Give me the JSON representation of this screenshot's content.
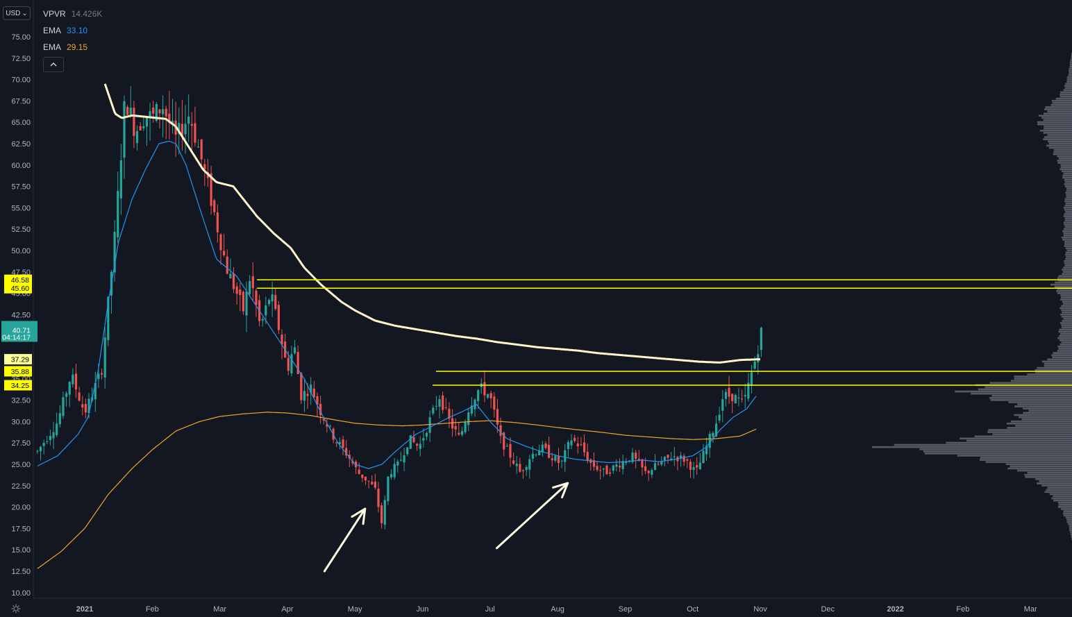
{
  "currency_button": "USD",
  "currency_caret": "⌄",
  "collapse_icon": "chevron-up-icon",
  "settings_icon": "gear-icon",
  "colors": {
    "background": "#131722",
    "candle_up": "#26a69a",
    "candle_down": "#ef5350",
    "ema_short": "#2962ff",
    "ema_long": "#f5a623",
    "ema_200": "#fff5c8",
    "levels": "#ffff00",
    "volume_profile": "#5d606b"
  },
  "legend": [
    {
      "name": "VPVR",
      "value": "14.426K",
      "color": "#787b86"
    },
    {
      "name": "EMA",
      "value": "33.10",
      "color": "#2196f3"
    },
    {
      "name": "EMA",
      "value": "29.15",
      "color": "#f5a623"
    }
  ],
  "price_tags": [
    {
      "label": "46.58",
      "value": 46.58,
      "color": "#ffff00"
    },
    {
      "label": "45.60",
      "value": 45.6,
      "color": "#ffff00"
    },
    {
      "label": "37.29",
      "value": 37.29,
      "color": "#ffff99"
    },
    {
      "label": "35.88",
      "value": 35.88,
      "color": "#ffff00"
    },
    {
      "label": "34.25",
      "value": 34.25,
      "color": "#ffff00"
    }
  ],
  "last_price": {
    "label": "40.71",
    "countdown": "04:14:17",
    "value": 40.71,
    "color": "#26a69a"
  },
  "chart_data": {
    "type": "candlestick",
    "ylim": [
      10,
      77
    ],
    "y_ticks": [
      "75.00",
      "72.50",
      "70.00",
      "67.50",
      "65.00",
      "62.50",
      "60.00",
      "57.50",
      "55.00",
      "52.50",
      "50.00",
      "47.50",
      "45.00",
      "42.50",
      "40.00",
      "37.50",
      "35.00",
      "32.50",
      "30.00",
      "27.50",
      "25.00",
      "22.50",
      "20.00",
      "17.50",
      "15.00",
      "12.50",
      "10.00"
    ],
    "x_ticks": [
      {
        "label": "2021",
        "month": 0,
        "bold": true
      },
      {
        "label": "Feb",
        "month": 1
      },
      {
        "label": "Mar",
        "month": 2
      },
      {
        "label": "Apr",
        "month": 3
      },
      {
        "label": "May",
        "month": 4
      },
      {
        "label": "Jun",
        "month": 5
      },
      {
        "label": "Jul",
        "month": 6
      },
      {
        "label": "Aug",
        "month": 7
      },
      {
        "label": "Sep",
        "month": 8
      },
      {
        "label": "Oct",
        "month": 9
      },
      {
        "label": "Nov",
        "month": 10
      },
      {
        "label": "Dec",
        "month": 11
      },
      {
        "label": "2022",
        "month": 12,
        "bold": true
      },
      {
        "label": "Feb",
        "month": 13
      },
      {
        "label": "Mar",
        "month": 14
      }
    ],
    "close_path": [
      [
        -0.7,
        26.5
      ],
      [
        -0.4,
        30
      ],
      [
        -0.2,
        35.5
      ],
      [
        0.0,
        31
      ],
      [
        0.25,
        36
      ],
      [
        0.35,
        44
      ],
      [
        0.45,
        52
      ],
      [
        0.6,
        68
      ],
      [
        0.75,
        64
      ],
      [
        0.9,
        66
      ],
      [
        1.0,
        65.5
      ],
      [
        1.15,
        67
      ],
      [
        1.35,
        63
      ],
      [
        1.55,
        66
      ],
      [
        1.75,
        60
      ],
      [
        1.9,
        55
      ],
      [
        2.1,
        48
      ],
      [
        2.35,
        43
      ],
      [
        2.45,
        47
      ],
      [
        2.6,
        41
      ],
      [
        2.75,
        45
      ],
      [
        2.9,
        40
      ],
      [
        3.0,
        36
      ],
      [
        3.1,
        39
      ],
      [
        3.2,
        33
      ],
      [
        3.35,
        34
      ],
      [
        3.5,
        31
      ],
      [
        3.7,
        28
      ],
      [
        3.9,
        26
      ],
      [
        4.05,
        24
      ],
      [
        4.2,
        23
      ],
      [
        4.3,
        22
      ],
      [
        4.4,
        18
      ],
      [
        4.5,
        24
      ],
      [
        4.65,
        25
      ],
      [
        4.8,
        28
      ],
      [
        4.95,
        27
      ],
      [
        5.1,
        30
      ],
      [
        5.25,
        33
      ],
      [
        5.4,
        30
      ],
      [
        5.55,
        28
      ],
      [
        5.7,
        32
      ],
      [
        5.85,
        34
      ],
      [
        6.0,
        33
      ],
      [
        6.15,
        28
      ],
      [
        6.3,
        26
      ],
      [
        6.45,
        24
      ],
      [
        6.6,
        26
      ],
      [
        6.75,
        27
      ],
      [
        6.9,
        26
      ],
      [
        7.05,
        25
      ],
      [
        7.2,
        28
      ],
      [
        7.35,
        27
      ],
      [
        7.5,
        25
      ],
      [
        7.7,
        24
      ],
      [
        7.9,
        25
      ],
      [
        8.1,
        26
      ],
      [
        8.3,
        24
      ],
      [
        8.5,
        25
      ],
      [
        8.7,
        26
      ],
      [
        8.9,
        25.5
      ],
      [
        9.05,
        24
      ],
      [
        9.2,
        27
      ],
      [
        9.35,
        30
      ],
      [
        9.45,
        33
      ],
      [
        9.6,
        33
      ],
      [
        9.75,
        32
      ],
      [
        9.85,
        35
      ],
      [
        9.95,
        38
      ],
      [
        10.02,
        40.7
      ]
    ],
    "ema_short_path": [
      [
        -0.7,
        24.8
      ],
      [
        -0.4,
        26
      ],
      [
        -0.1,
        28.5
      ],
      [
        0.05,
        30.5
      ],
      [
        0.2,
        36
      ],
      [
        0.35,
        44
      ],
      [
        0.5,
        51
      ],
      [
        0.7,
        56
      ],
      [
        0.9,
        59.5
      ],
      [
        1.1,
        62.5
      ],
      [
        1.25,
        62.8
      ],
      [
        1.35,
        62.5
      ],
      [
        1.5,
        60
      ],
      [
        1.7,
        55
      ],
      [
        1.95,
        49
      ],
      [
        2.25,
        47
      ],
      [
        2.5,
        44
      ],
      [
        2.75,
        41
      ],
      [
        3.0,
        38
      ],
      [
        3.25,
        35
      ],
      [
        3.5,
        31
      ],
      [
        3.75,
        27.5
      ],
      [
        4.0,
        25
      ],
      [
        4.2,
        24.5
      ],
      [
        4.4,
        25
      ],
      [
        4.6,
        26.5
      ],
      [
        4.9,
        28.5
      ],
      [
        5.15,
        29.5
      ],
      [
        5.4,
        30.5
      ],
      [
        5.6,
        31.2
      ],
      [
        5.8,
        32
      ],
      [
        6.0,
        30
      ],
      [
        6.25,
        28
      ],
      [
        6.5,
        27.2
      ],
      [
        6.75,
        26.5
      ],
      [
        7.0,
        26
      ],
      [
        7.25,
        25.6
      ],
      [
        7.5,
        25.4
      ],
      [
        7.75,
        25.2
      ],
      [
        8.0,
        25.3
      ],
      [
        8.25,
        25.5
      ],
      [
        8.5,
        25.3
      ],
      [
        8.75,
        25.6
      ],
      [
        9.0,
        26
      ],
      [
        9.2,
        27
      ],
      [
        9.4,
        29
      ],
      [
        9.6,
        30.5
      ],
      [
        9.8,
        31.5
      ],
      [
        9.95,
        33.1
      ]
    ],
    "ema_long_path": [
      [
        -0.7,
        12.8
      ],
      [
        -0.35,
        14.8
      ],
      [
        0.0,
        17.5
      ],
      [
        0.35,
        21.5
      ],
      [
        0.7,
        24.5
      ],
      [
        1.0,
        26.7
      ],
      [
        1.35,
        28.9
      ],
      [
        1.7,
        30
      ],
      [
        2.0,
        30.6
      ],
      [
        2.35,
        30.9
      ],
      [
        2.7,
        31.1
      ],
      [
        3.0,
        31.0
      ],
      [
        3.35,
        30.7
      ],
      [
        3.7,
        30.2
      ],
      [
        4.0,
        29.8
      ],
      [
        4.35,
        29.6
      ],
      [
        4.7,
        29.5
      ],
      [
        5.0,
        29.6
      ],
      [
        5.35,
        29.8
      ],
      [
        5.7,
        30.0
      ],
      [
        6.0,
        30.1
      ],
      [
        6.35,
        29.9
      ],
      [
        6.7,
        29.6
      ],
      [
        7.0,
        29.3
      ],
      [
        7.35,
        29.0
      ],
      [
        7.7,
        28.7
      ],
      [
        8.0,
        28.4
      ],
      [
        8.35,
        28.2
      ],
      [
        8.7,
        28.0
      ],
      [
        9.0,
        27.9
      ],
      [
        9.35,
        28.0
      ],
      [
        9.7,
        28.3
      ],
      [
        9.95,
        29.15
      ]
    ],
    "ema_200_path": [
      [
        0.3,
        69.5
      ],
      [
        0.45,
        66
      ],
      [
        0.55,
        65.5
      ],
      [
        0.7,
        65.8
      ],
      [
        0.95,
        65.6
      ],
      [
        1.2,
        65.4
      ],
      [
        1.35,
        64.5
      ],
      [
        1.55,
        62
      ],
      [
        1.75,
        59.5
      ],
      [
        1.95,
        58
      ],
      [
        2.2,
        57.5
      ],
      [
        2.35,
        56
      ],
      [
        2.55,
        54
      ],
      [
        2.8,
        52
      ],
      [
        3.05,
        50.3
      ],
      [
        3.25,
        48
      ],
      [
        3.5,
        46
      ],
      [
        3.8,
        44
      ],
      [
        4.0,
        43
      ],
      [
        4.3,
        41.8
      ],
      [
        4.6,
        41.2
      ],
      [
        4.9,
        40.8
      ],
      [
        5.2,
        40.4
      ],
      [
        5.5,
        40.0
      ],
      [
        5.8,
        39.7
      ],
      [
        6.1,
        39.3
      ],
      [
        6.4,
        39.0
      ],
      [
        6.7,
        38.7
      ],
      [
        7.0,
        38.5
      ],
      [
        7.3,
        38.3
      ],
      [
        7.6,
        38.0
      ],
      [
        7.9,
        37.8
      ],
      [
        8.2,
        37.6
      ],
      [
        8.5,
        37.4
      ],
      [
        8.8,
        37.2
      ],
      [
        9.1,
        37.0
      ],
      [
        9.4,
        36.9
      ],
      [
        9.7,
        37.2
      ],
      [
        10.0,
        37.29
      ]
    ],
    "horizontal_levels": [
      {
        "value": 46.58,
        "from_month": 2.55
      },
      {
        "value": 45.6,
        "from_month": 2.55
      },
      {
        "value": 35.88,
        "from_month": 5.2
      },
      {
        "value": 34.25,
        "from_month": 5.15
      }
    ],
    "arrows": [
      {
        "from": [
          3.55,
          12.5
        ],
        "to": [
          4.15,
          19.8
        ]
      },
      {
        "from": [
          6.1,
          15.2
        ],
        "to": [
          7.15,
          22.8
        ]
      }
    ],
    "volume_profile": [
      [
        10.5,
        0.0
      ],
      [
        14.0,
        0.0
      ],
      [
        16.0,
        0.0
      ],
      [
        18.0,
        0.02
      ],
      [
        19.5,
        0.05
      ],
      [
        20.5,
        0.08
      ],
      [
        21.5,
        0.12
      ],
      [
        22.5,
        0.15
      ],
      [
        23.5,
        0.22
      ],
      [
        24.5,
        0.3
      ],
      [
        25.5,
        0.45
      ],
      [
        26.3,
        0.7
      ],
      [
        27.0,
        0.98
      ],
      [
        27.8,
        0.55
      ],
      [
        28.6,
        0.45
      ],
      [
        29.5,
        0.32
      ],
      [
        30.5,
        0.28
      ],
      [
        31.5,
        0.24
      ],
      [
        32.5,
        0.38
      ],
      [
        33.5,
        0.55
      ],
      [
        34.3,
        0.45
      ],
      [
        35.0,
        0.3
      ],
      [
        36.0,
        0.18
      ],
      [
        37.0,
        0.14
      ],
      [
        38.0,
        0.09
      ],
      [
        39.0,
        0.06
      ],
      [
        40.0,
        0.07
      ],
      [
        41.0,
        0.06
      ],
      [
        42.0,
        0.05
      ],
      [
        43.0,
        0.06
      ],
      [
        44.0,
        0.05
      ],
      [
        45.0,
        0.07
      ],
      [
        46.0,
        0.1
      ],
      [
        46.8,
        0.07
      ],
      [
        47.5,
        0.05
      ],
      [
        48.5,
        0.04
      ],
      [
        50.0,
        0.03
      ],
      [
        51.5,
        0.05
      ],
      [
        53.0,
        0.04
      ],
      [
        55.0,
        0.04
      ],
      [
        57.0,
        0.03
      ],
      [
        59.0,
        0.05
      ],
      [
        61.0,
        0.08
      ],
      [
        62.5,
        0.13
      ],
      [
        64.0,
        0.15
      ],
      [
        65.0,
        0.17
      ],
      [
        66.0,
        0.15
      ],
      [
        67.0,
        0.12
      ],
      [
        68.0,
        0.07
      ],
      [
        69.0,
        0.04
      ],
      [
        70.5,
        0.02
      ],
      [
        72.0,
        0.01
      ],
      [
        73.5,
        0.0
      ]
    ]
  }
}
